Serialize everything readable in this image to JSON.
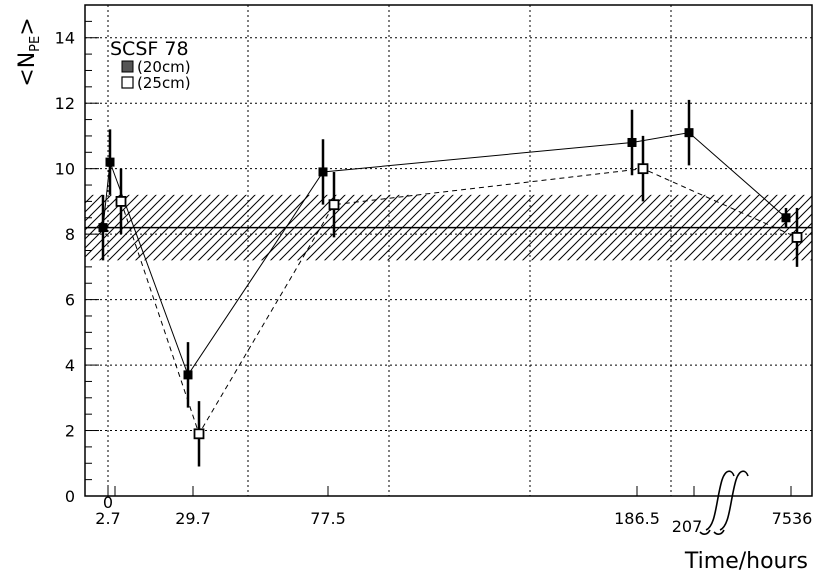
{
  "chart_data": {
    "type": "scatter",
    "ylabel_main": "<N",
    "ylabel_sub": "PE",
    "ylabel_end": ">",
    "xlabel": "Time/hours",
    "ylim": [
      0,
      15
    ],
    "yticks": [
      0,
      2,
      4,
      6,
      8,
      10,
      12,
      14
    ],
    "x_categories": [
      "0",
      "2.7",
      "29.7",
      "77.5",
      "186.5",
      "207",
      "7536"
    ],
    "x_tick_labels": [
      {
        "text": "0",
        "x": "0"
      },
      {
        "text": "2.7",
        "x": "2.7"
      },
      {
        "text": "29.7",
        "x": "29.7"
      },
      {
        "text": "77.5",
        "x": "77.5"
      },
      {
        "text": "186.5",
        "x": "186.5"
      },
      {
        "text": "207",
        "x": "207"
      },
      {
        "text": "7536",
        "x": "7536"
      }
    ],
    "grid": true,
    "legend": {
      "title": "SCSF 78",
      "placement": "top-left",
      "entries": [
        {
          "label": "(20cm)",
          "marker": "filled-square"
        },
        {
          "label": "(25cm)",
          "marker": "open-square"
        }
      ]
    },
    "reference_band": {
      "center": 8.2,
      "low": 7.2,
      "high": 9.2
    },
    "series": [
      {
        "name": "(20cm)",
        "marker": "filled-square",
        "line": "solid",
        "points": [
          {
            "x": "0",
            "y": 8.2,
            "err": 1.0
          },
          {
            "x": "2.7",
            "y": 10.2,
            "err": 1.0
          },
          {
            "x": "29.7",
            "y": 3.7,
            "err": 1.0
          },
          {
            "x": "77.5",
            "y": 9.9,
            "err": 1.0
          },
          {
            "x": "186.5",
            "y": 10.8,
            "err": 1.0
          },
          {
            "x": "207",
            "y": 11.1,
            "err": 1.0
          },
          {
            "x": "7536",
            "y": 8.5,
            "err": 0.3
          }
        ]
      },
      {
        "name": "(25cm)",
        "marker": "open-square",
        "line": "dashed",
        "points": [
          {
            "x": "2.7",
            "y": 9.0,
            "err": 1.0
          },
          {
            "x": "29.7",
            "y": 1.9,
            "err": 1.0
          },
          {
            "x": "77.5",
            "y": 8.9,
            "err": 1.0
          },
          {
            "x": "186.5",
            "y": 10.0,
            "err": 1.0
          },
          {
            "x": "7536",
            "y": 7.9,
            "err": 0.9
          }
        ]
      }
    ]
  }
}
